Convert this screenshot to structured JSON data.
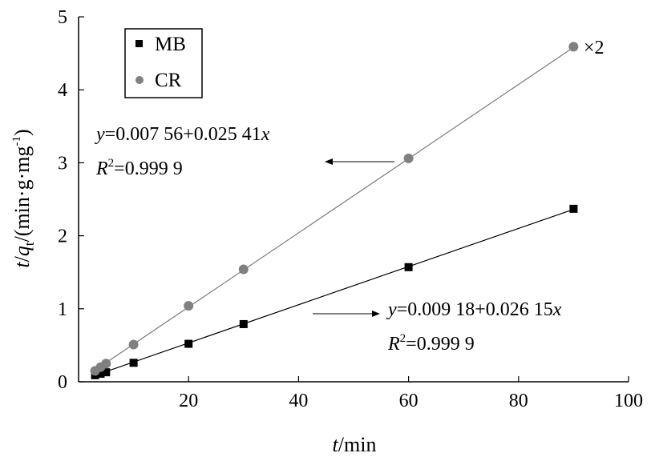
{
  "chart_data": {
    "type": "scatter",
    "title": "",
    "xlabel": {
      "var": "t",
      "unit": "/min"
    },
    "ylabel": {
      "var1": "t",
      "var2": "q",
      "sub": "t",
      "unit": "/(min·g·mg",
      "sup": "-1",
      "close": ")"
    },
    "xlim": [
      0,
      100
    ],
    "ylim": [
      0,
      5
    ],
    "x_ticks": [
      "20",
      "40",
      "60",
      "80",
      "100"
    ],
    "y_ticks": [
      "0",
      "1",
      "2",
      "3",
      "4",
      "5"
    ],
    "grid": false,
    "legend_position": "top-left",
    "series": [
      {
        "name": "MB",
        "marker": "square",
        "color": "#000000",
        "x": [
          3,
          4,
          5,
          10,
          20,
          30,
          60,
          90
        ],
        "y": [
          0.09,
          0.11,
          0.13,
          0.26,
          0.52,
          0.79,
          1.57,
          2.37
        ],
        "fit": {
          "intercept": 0.00918,
          "slope": 0.02615
        }
      },
      {
        "name": "CR",
        "marker": "circle",
        "color": "#808080",
        "x": [
          3,
          4,
          5,
          10,
          20,
          30,
          60,
          90
        ],
        "y": [
          0.15,
          0.2,
          0.25,
          0.51,
          1.04,
          1.54,
          3.06,
          4.59
        ],
        "fit": {
          "intercept": 0.00756,
          "slope": 0.05082
        }
      }
    ],
    "annotations": {
      "scale_note": "×2",
      "cr_equation": {
        "y": "y",
        "rest": "=0.007 56+0.025 41",
        "x": "x"
      },
      "cr_r2": {
        "r": "R",
        "sup": "2",
        "rest": "=0.999 9"
      },
      "mb_equation": {
        "y": "y",
        "rest": "=0.009 18+0.026 15",
        "x": "x"
      },
      "mb_r2": {
        "r": "R",
        "sup": "2",
        "rest": "=0.999 9"
      }
    }
  }
}
